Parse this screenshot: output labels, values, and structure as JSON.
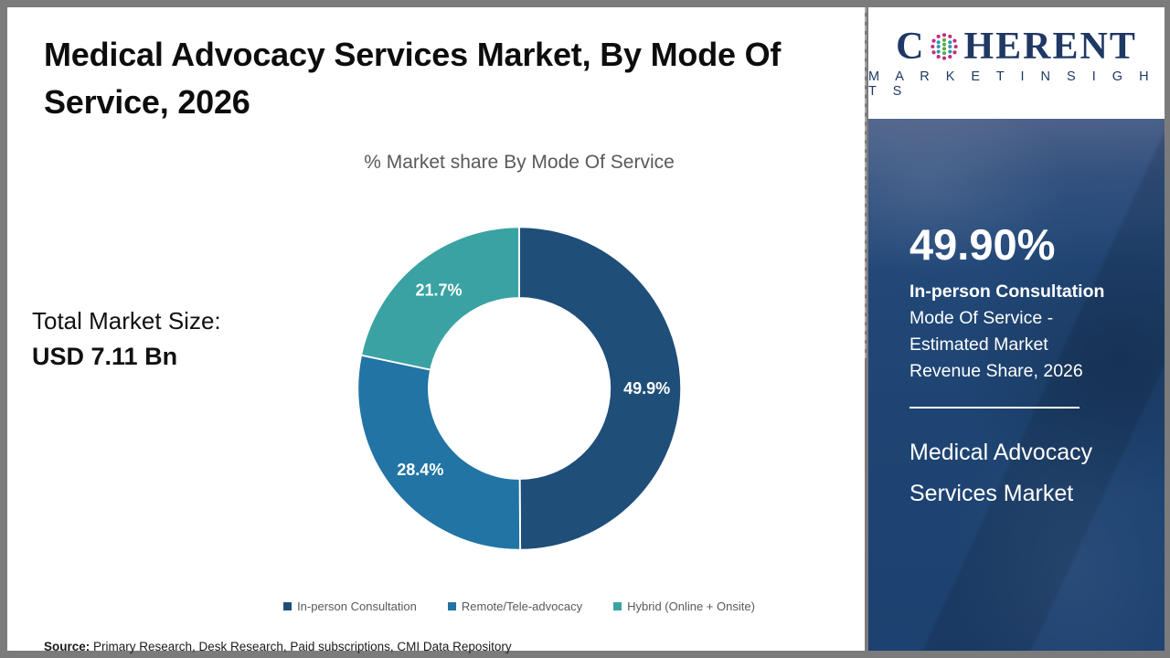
{
  "header": {
    "title_line1": "Medical Advocacy Services Market, By Mode Of",
    "title_line2": "Service, 2026"
  },
  "logo": {
    "brand_prefix": "C",
    "brand_suffix": "HERENT",
    "brand_subtitle": "M A R K E T   I N S I G H T S",
    "brand_color": "#1f3864"
  },
  "left_panel": {
    "total_label": "Total Market Size:",
    "total_value": "USD 7.11 Bn"
  },
  "chart_data": {
    "type": "pie",
    "subtype": "donut",
    "title": "% Market share By Mode Of Service",
    "labels": [
      "In-person Consultation",
      "Remote/Tele-advocacy",
      "Hybrid (Online + Onsite)"
    ],
    "values": [
      49.9,
      28.4,
      21.7
    ],
    "value_labels": [
      "49.9%",
      "28.4%",
      "21.7%"
    ],
    "colors": [
      "#1F4E79",
      "#2274A4",
      "#3AA2A2"
    ],
    "start_angle_deg": -90,
    "direction": "clockwise",
    "inner_radius_ratio": 0.56,
    "legend_position": "bottom"
  },
  "side_panel": {
    "background_color": "#1E4473",
    "stat_value": "49.90%",
    "stat_bold_line": "In-person Consultation",
    "desc_lines": [
      "Mode Of Service -",
      "Estimated Market",
      "Revenue Share, 2026"
    ],
    "panel_title_line1": "Medical Advocacy",
    "panel_title_line2": "Services Market"
  },
  "footer": {
    "source_label": "Source:",
    "source_text": " Primary Research, Desk Research, Paid subscriptions, CMI Data Repository"
  }
}
